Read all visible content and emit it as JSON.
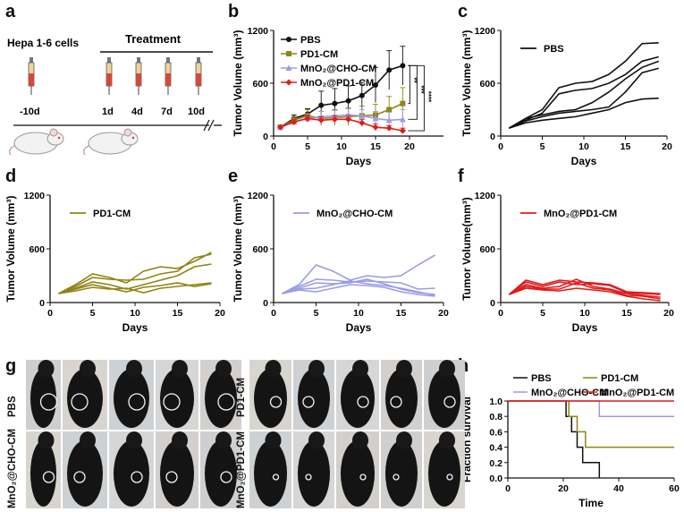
{
  "panels": {
    "a": {
      "label": "a",
      "cells": "Hepa 1-6 cells",
      "treatment": "Treatment",
      "days": [
        "-10d",
        "1d",
        "4d",
        "7d",
        "10d"
      ],
      "mouse_icon": "mouse-icon",
      "syringe_icon": "syringe-icon"
    },
    "b": {
      "label": "b"
    },
    "c": {
      "label": "c"
    },
    "d": {
      "label": "d"
    },
    "e": {
      "label": "e"
    },
    "f": {
      "label": "f"
    },
    "g": {
      "label": "g"
    },
    "h": {
      "label": "h"
    }
  },
  "colors": {
    "PBS": "#111111",
    "PD1": "#8f8416",
    "CHO": "#9a9ce8",
    "PD1MN": "#e01b1b"
  },
  "sig_marks": [
    "**",
    "***",
    "****"
  ],
  "chart_data": [
    {
      "id": "b",
      "type": "line",
      "xlabel": "Days",
      "ylabel": "Tumor Volume (mm³)",
      "xlim": [
        0,
        25
      ],
      "ylim": [
        0,
        1200
      ],
      "xticks": [
        "0",
        "5",
        "10",
        "15",
        "20"
      ],
      "yticks": [
        "0",
        "600",
        "1200"
      ],
      "x": [
        1,
        3,
        5,
        7,
        9,
        11,
        13,
        15,
        17,
        19
      ],
      "series": [
        {
          "name": "PBS",
          "color": "#111111",
          "marker": "circle",
          "values": [
            100,
            200,
            250,
            350,
            370,
            400,
            460,
            580,
            750,
            800
          ],
          "err": [
            20,
            40,
            60,
            160,
            170,
            170,
            150,
            200,
            220,
            220
          ]
        },
        {
          "name": "PD1-CM",
          "color": "#8f8416",
          "marker": "square",
          "values": [
            100,
            180,
            230,
            200,
            210,
            220,
            230,
            240,
            300,
            370
          ],
          "err": [
            20,
            40,
            70,
            80,
            90,
            100,
            110,
            120,
            150,
            180
          ]
        },
        {
          "name": "MnO₂@CHO-CM",
          "color": "#9a9ce8",
          "marker": "triangle",
          "values": [
            100,
            160,
            200,
            220,
            230,
            240,
            230,
            200,
            180,
            190
          ],
          "err": [
            20,
            30,
            50,
            60,
            60,
            70,
            70,
            80,
            90,
            110
          ]
        },
        {
          "name": "MnO₂@PD1-CM",
          "color": "#e01b1b",
          "marker": "diamond",
          "values": [
            100,
            160,
            200,
            180,
            190,
            190,
            150,
            100,
            90,
            60
          ],
          "err": [
            20,
            30,
            40,
            40,
            40,
            40,
            40,
            40,
            30,
            30
          ]
        }
      ]
    },
    {
      "id": "c",
      "type": "line",
      "xlabel": "Days",
      "ylabel": "Tumor Volume (mm³)",
      "legend": "PBS",
      "xlim": [
        0,
        20
      ],
      "ylim": [
        0,
        1200
      ],
      "xticks": [
        "0",
        "5",
        "10",
        "15",
        "20"
      ],
      "yticks": [
        "0",
        "600",
        "1200"
      ],
      "x": [
        1,
        3,
        5,
        7,
        9,
        11,
        13,
        15,
        17,
        19
      ],
      "series": [
        {
          "name": "PBS-1",
          "values": [
            90,
            200,
            300,
            550,
            600,
            620,
            700,
            850,
            1050,
            1060
          ]
        },
        {
          "name": "PBS-2",
          "values": [
            90,
            180,
            260,
            480,
            520,
            540,
            600,
            700,
            850,
            900
          ]
        },
        {
          "name": "PBS-3",
          "values": [
            90,
            200,
            240,
            280,
            300,
            380,
            500,
            650,
            780,
            850
          ]
        },
        {
          "name": "PBS-4",
          "values": [
            90,
            170,
            220,
            260,
            280,
            300,
            330,
            500,
            720,
            770
          ]
        },
        {
          "name": "PBS-5",
          "values": [
            90,
            150,
            180,
            200,
            220,
            260,
            300,
            380,
            420,
            430
          ]
        }
      ]
    },
    {
      "id": "d",
      "type": "line",
      "xlabel": "Days",
      "ylabel": "Tumor Volume (mm³)",
      "legend": "PD1-CM",
      "xlim": [
        0,
        20
      ],
      "ylim": [
        0,
        1200
      ],
      "xticks": [
        "0",
        "5",
        "10",
        "15",
        "20"
      ],
      "yticks": [
        "0",
        "600",
        "1200"
      ],
      "x": [
        1,
        3,
        5,
        7,
        9,
        11,
        13,
        15,
        17,
        19
      ],
      "series": [
        {
          "name": "PD1-1",
          "values": [
            100,
            200,
            320,
            280,
            220,
            350,
            400,
            380,
            460,
            560
          ]
        },
        {
          "name": "PD1-2",
          "values": [
            100,
            180,
            280,
            260,
            250,
            260,
            320,
            350,
            500,
            540
          ]
        },
        {
          "name": "PD1-3",
          "values": [
            100,
            160,
            230,
            200,
            150,
            200,
            250,
            300,
            400,
            430
          ]
        },
        {
          "name": "PD1-4",
          "values": [
            100,
            150,
            200,
            160,
            120,
            170,
            190,
            220,
            180,
            210
          ]
        },
        {
          "name": "PD1-5",
          "values": [
            100,
            130,
            170,
            150,
            160,
            110,
            160,
            180,
            200,
            220
          ]
        }
      ]
    },
    {
      "id": "e",
      "type": "line",
      "xlabel": "Days",
      "ylabel": "Tumor Volume (mm³)",
      "legend": "MnO₂@CHO-CM",
      "xlim": [
        0,
        20
      ],
      "ylim": [
        0,
        1200
      ],
      "xticks": [
        "0",
        "5",
        "10",
        "15",
        "20"
      ],
      "yticks": [
        "0",
        "600",
        "1200"
      ],
      "x": [
        1,
        3,
        5,
        7,
        9,
        11,
        13,
        15,
        17,
        19
      ],
      "series": [
        {
          "name": "CHO-1",
          "values": [
            100,
            200,
            420,
            350,
            250,
            300,
            280,
            300,
            420,
            530
          ]
        },
        {
          "name": "CHO-2",
          "values": [
            100,
            180,
            260,
            250,
            230,
            240,
            230,
            220,
            150,
            160
          ]
        },
        {
          "name": "CHO-3",
          "values": [
            100,
            160,
            220,
            210,
            220,
            260,
            210,
            150,
            110,
            90
          ]
        },
        {
          "name": "CHO-4",
          "values": [
            100,
            150,
            160,
            200,
            240,
            210,
            190,
            160,
            120,
            80
          ]
        },
        {
          "name": "CHO-5",
          "values": [
            100,
            140,
            120,
            160,
            200,
            190,
            170,
            120,
            90,
            70
          ]
        }
      ]
    },
    {
      "id": "f",
      "type": "line",
      "xlabel": "Days",
      "ylabel": "Tumor Volume(mm³)",
      "legend": "MnO₂@PD1-CM",
      "xlim": [
        0,
        20
      ],
      "ylim": [
        0,
        1200
      ],
      "xticks": [
        "0",
        "5",
        "10",
        "15",
        "20"
      ],
      "yticks": [
        "0",
        "600",
        "1200"
      ],
      "x": [
        1,
        3,
        5,
        7,
        9,
        11,
        13,
        15,
        17,
        19
      ],
      "series": [
        {
          "name": "PD1MN-1",
          "values": [
            90,
            250,
            200,
            250,
            230,
            220,
            200,
            120,
            110,
            100
          ]
        },
        {
          "name": "PD1MN-2",
          "values": [
            90,
            230,
            180,
            230,
            200,
            210,
            190,
            110,
            100,
            90
          ]
        },
        {
          "name": "PD1MN-3",
          "values": [
            90,
            200,
            160,
            180,
            260,
            180,
            150,
            100,
            80,
            60
          ]
        },
        {
          "name": "PD1MN-4",
          "values": [
            90,
            180,
            150,
            150,
            220,
            160,
            140,
            80,
            70,
            40
          ]
        },
        {
          "name": "PD1MN-5",
          "values": [
            90,
            160,
            140,
            130,
            160,
            140,
            120,
            70,
            40,
            20
          ]
        }
      ]
    },
    {
      "id": "h",
      "type": "line",
      "xlabel": "Time",
      "ylabel": "Fraction survival",
      "xlim": [
        0,
        60
      ],
      "ylim": [
        0,
        1
      ],
      "xticks": [
        "0",
        "20",
        "40",
        "60"
      ],
      "yticks": [
        "0.0",
        "0.2",
        "0.4",
        "0.6",
        "0.8",
        "1.0"
      ],
      "series": [
        {
          "name": "PBS",
          "color": "#111111",
          "steps": [
            [
              0,
              1
            ],
            [
              21,
              1
            ],
            [
              21,
              0.8
            ],
            [
              23,
              0.8
            ],
            [
              23,
              0.6
            ],
            [
              25,
              0.6
            ],
            [
              25,
              0.4
            ],
            [
              27,
              0.4
            ],
            [
              27,
              0.2
            ],
            [
              33,
              0.2
            ],
            [
              33,
              0
            ]
          ]
        },
        {
          "name": "PD1-CM",
          "color": "#8f8416",
          "steps": [
            [
              0,
              1
            ],
            [
              22,
              1
            ],
            [
              22,
              0.8
            ],
            [
              25,
              0.8
            ],
            [
              25,
              0.6
            ],
            [
              28,
              0.6
            ],
            [
              28,
              0.4
            ],
            [
              60,
              0.4
            ]
          ]
        },
        {
          "name": "MnO₂@CHO-CM",
          "color": "#9a9ce8",
          "steps": [
            [
              0,
              1
            ],
            [
              33,
              1
            ],
            [
              33,
              0.8
            ],
            [
              60,
              0.8
            ]
          ]
        },
        {
          "name": "MnO₂@PD1-CM",
          "color": "#e01b1b",
          "steps": [
            [
              0,
              1
            ],
            [
              60,
              1
            ]
          ]
        }
      ]
    }
  ],
  "photos": {
    "groups": [
      "PBS",
      "PD1-CM",
      "MnO₂@CHO-CM",
      "MnO₂@PD1-CM"
    ],
    "mouse_photo": "mouse-photo"
  }
}
